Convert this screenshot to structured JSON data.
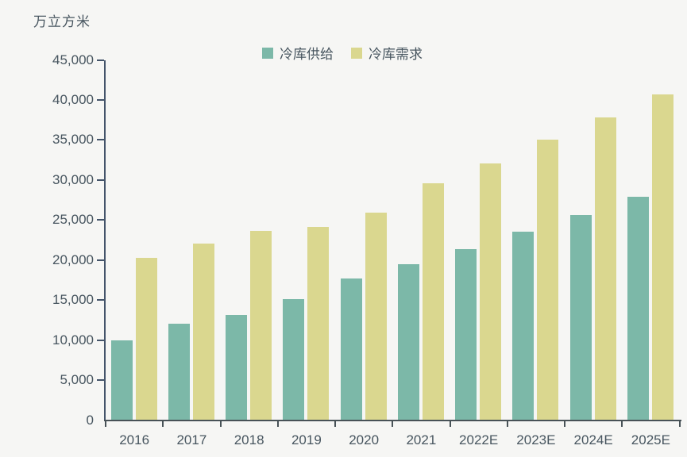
{
  "chart_data": {
    "type": "bar",
    "title": "",
    "unit_label": "万立方米",
    "categories": [
      "2016",
      "2017",
      "2018",
      "2019",
      "2020",
      "2021",
      "2022E",
      "2023E",
      "2024E",
      "2025E"
    ],
    "series": [
      {
        "name": "冷库供给",
        "color": "#7cb8a8",
        "values": [
          10000,
          12000,
          13100,
          15100,
          17700,
          19500,
          21400,
          23500,
          25600,
          27900
        ]
      },
      {
        "name": "冷库需求",
        "color": "#dad78f",
        "values": [
          20300,
          22100,
          23600,
          24100,
          25900,
          29600,
          32100,
          35000,
          37800,
          40700
        ]
      }
    ],
    "ylim": [
      0,
      45000
    ],
    "ytick_interval": 5000,
    "ytick_labels": [
      "0",
      "5,000",
      "10,000",
      "15,000",
      "20,000",
      "25,000",
      "30,000",
      "35,000",
      "40,000",
      "45,000"
    ],
    "grid": false,
    "legend_position": "top-center"
  },
  "colors": {
    "background": "#f6f6f4",
    "y_axis": "#44546a",
    "x_axis": "#485257",
    "text": "#47555f",
    "supply_bar": "#7cb8a8",
    "demand_bar": "#dad78f"
  }
}
